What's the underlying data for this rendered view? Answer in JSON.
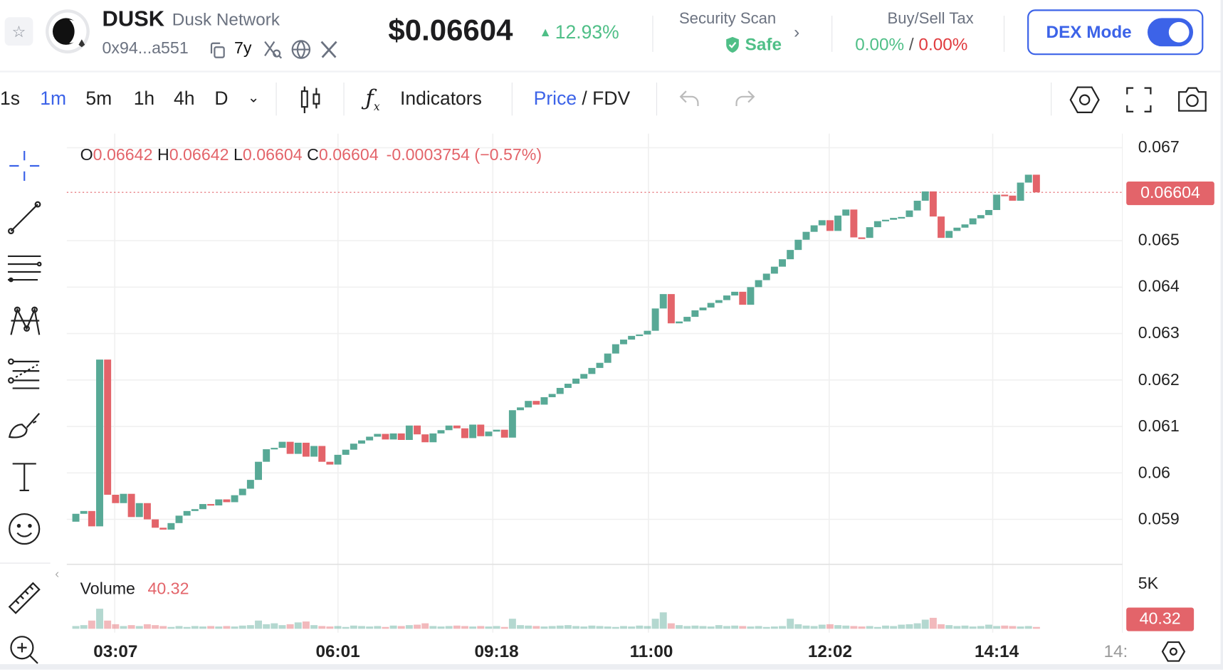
{
  "header": {
    "symbol": "DUSK",
    "name": "Dusk Network",
    "address": "0x94...a551",
    "age": "7y",
    "price": "$0.06604",
    "change": "12.93%",
    "security_label": "Security Scan",
    "security_status": "Safe",
    "tax_label": "Buy/Sell Tax",
    "buy_tax": "0.00%",
    "tax_sep": "/",
    "sell_tax": "0.00%",
    "dex_mode_label": "DEX Mode",
    "dex_mode_on": true
  },
  "toolbar": {
    "timeframes": [
      "1s",
      "1m",
      "5m",
      "1h",
      "4h",
      "D"
    ],
    "active_timeframe": "1m",
    "indicators_label": "Indicators",
    "price_label": "Price",
    "sep": "/",
    "fdv_label": "FDV"
  },
  "ohlc": {
    "o_label": "O",
    "o": "0.06642",
    "h_label": "H",
    "h": "0.06642",
    "l_label": "L",
    "l": "0.06604",
    "c_label": "C",
    "c": "0.06604",
    "change": "-0.0003754 (−0.57%)"
  },
  "volume": {
    "label": "Volume",
    "value": "40.32",
    "axis_label": "5K"
  },
  "colors": {
    "up": "#58a996",
    "down": "#e3646a",
    "accent": "#3c63e8",
    "safe": "#4fbf87"
  },
  "chart_data": {
    "type": "candlestick",
    "ylim": [
      0.0582,
      0.0675
    ],
    "y_ticks": [
      "0.067",
      "0.065",
      "0.064",
      "0.063",
      "0.062",
      "0.061",
      "0.06",
      "0.059"
    ],
    "y_tick_values": [
      0.067,
      0.065,
      0.064,
      0.063,
      0.062,
      0.061,
      0.06,
      0.059
    ],
    "last_price_label": "0.06604",
    "first_open": 0.05895,
    "closes": [
      0.05912,
      0.05918,
      0.05885,
      0.06244,
      0.05953,
      0.05935,
      0.05955,
      0.05905,
      0.05935,
      0.059,
      0.05882,
      0.05878,
      0.05892,
      0.05908,
      0.05918,
      0.05922,
      0.05933,
      0.0593,
      0.05943,
      0.05937,
      0.05952,
      0.05966,
      0.05985,
      0.06024,
      0.06051,
      0.06054,
      0.06067,
      0.06041,
      0.06065,
      0.06035,
      0.06058,
      0.06024,
      0.06018,
      0.06039,
      0.0605,
      0.06063,
      0.0607,
      0.06078,
      0.06084,
      0.06072,
      0.06085,
      0.06071,
      0.06102,
      0.06083,
      0.06066,
      0.06085,
      0.06092,
      0.06102,
      0.06096,
      0.06075,
      0.06104,
      0.06079,
      0.06089,
      0.06093,
      0.06076,
      0.06135,
      0.06141,
      0.06155,
      0.06147,
      0.06163,
      0.0617,
      0.06183,
      0.06192,
      0.06203,
      0.06213,
      0.06226,
      0.06237,
      0.06257,
      0.06277,
      0.06287,
      0.06295,
      0.06298,
      0.06306,
      0.06354,
      0.06385,
      0.06322,
      0.06326,
      0.06336,
      0.0635,
      0.06356,
      0.06366,
      0.06372,
      0.06382,
      0.0639,
      0.06362,
      0.064,
      0.06415,
      0.06429,
      0.06444,
      0.0646,
      0.0648,
      0.06502,
      0.06519,
      0.06533,
      0.06544,
      0.06521,
      0.06554,
      0.06567,
      0.06507,
      0.06506,
      0.06529,
      0.06542,
      0.06545,
      0.06549,
      0.06551,
      0.06565,
      0.06586,
      0.06606,
      0.06552,
      0.06506,
      0.06521,
      0.06528,
      0.06535,
      0.06548,
      0.06555,
      0.06566,
      0.06599,
      0.06597,
      0.06586,
      0.06625,
      0.06642,
      0.06604
    ],
    "volumes": [
      300,
      400,
      900,
      2200,
      900,
      500,
      300,
      400,
      300,
      500,
      400,
      300,
      200,
      300,
      200,
      300,
      250,
      300,
      250,
      300,
      250,
      350,
      400,
      900,
      500,
      600,
      400,
      500,
      700,
      800,
      400,
      300,
      250,
      300,
      200,
      350,
      300,
      250,
      300,
      200,
      350,
      300,
      400,
      450,
      600,
      300,
      250,
      300,
      350,
      300,
      250,
      300,
      250,
      300,
      200,
      1100,
      400,
      350,
      300,
      250,
      300,
      350,
      400,
      300,
      250,
      350,
      300,
      250,
      200,
      300,
      250,
      350,
      300,
      1100,
      1800,
      600,
      400,
      300,
      350,
      300,
      250,
      400,
      300,
      350,
      300,
      250,
      300,
      200,
      250,
      300,
      1100,
      500,
      350,
      300,
      450,
      500,
      400,
      350,
      300,
      250,
      300,
      200,
      350,
      300,
      450,
      500,
      600,
      1000,
      1200,
      500,
      400,
      300,
      350,
      250,
      300,
      450,
      300,
      350,
      300,
      250,
      300,
      200
    ],
    "x_ticks": [
      {
        "label": "03:07",
        "index": 5
      },
      {
        "label": "06:01",
        "index": 33
      },
      {
        "label": "09:18",
        "index": 53
      },
      {
        "label": "11:00",
        "index": 72.5
      },
      {
        "label": "12:02",
        "index": 95
      },
      {
        "label": "14:14",
        "index": 116
      },
      {
        "label": "14:",
        "index": 131
      }
    ]
  }
}
